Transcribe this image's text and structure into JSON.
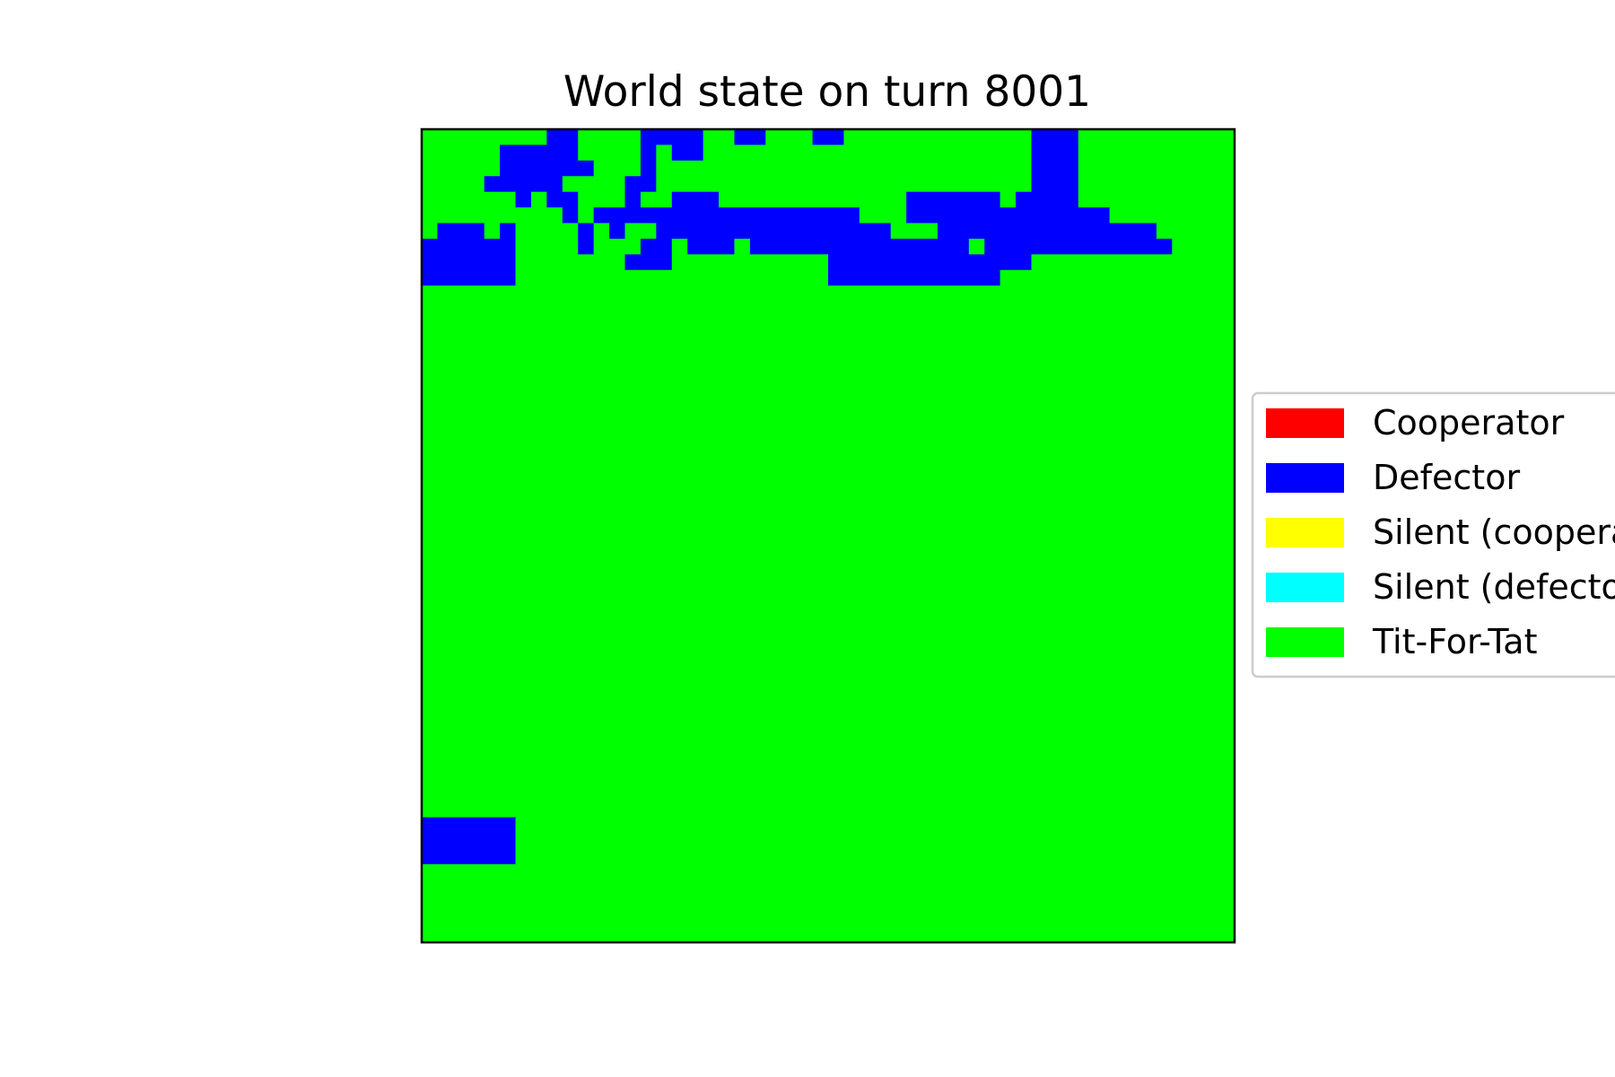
{
  "chart_data": {
    "type": "heatmap",
    "title": "World state on turn 8001",
    "grid": false,
    "legend": {
      "placement": "right",
      "entries": [
        {
          "label": "Cooperator",
          "color": "#ff0000"
        },
        {
          "label": "Defector",
          "color": "#0000ff"
        },
        {
          "label": "Silent (cooperator)",
          "color": "#ffff00"
        },
        {
          "label": "Silent (defector)",
          "color": "#00ffff"
        },
        {
          "label": "Tit-For-Tat",
          "color": "#00ff00"
        }
      ]
    },
    "palette": {
      "D": "#0000ff",
      "T": "#00ff00"
    },
    "rows": [
      "TTTTTTTTDDTTTTDDDDTTDDTTTDDTTTTTTTTTTTTDDDTTTTTTTTTT",
      "TTTTTDDDDDTTTTDTDDTTTTTTTTTTTTTTTTTTTTTDDDTTTTTTTTTT",
      "TTTTTDDDDDDTTTDTTTTTTTTTTTTTTTTTTTTTTTTDDDTTTTTTTTTT",
      "TTTTDDDDDTTTTDDTTTTTTTTTTTTTTTTTTTTTTTTDDDTTTTTTTTTT",
      "TTTTTTDTDDTTTDTTDDDTTTTTTTTTTTTDDDDDDTDDDDTTTTTTTTTT",
      "TTTTTTTTTDTDDDDDDDDDDDDDDDDDTTTDDDDDDDDDDDDDTTTTTTTT",
      "TDDDTDTTTTDTDTTDDDDDDDDDDDDDDDTTTDDDDDDDDDDDDDDTTTTT",
      "DDDDDDTTTTDTTTDDTDDDTDDDDDDDDDDDDDDTDDDDDDDDDDDDTTTT",
      "DDDDDDTTTTTTTDDDTTTTTTTTTTDDDDDDDDDDDDDTTTTTTTTTTTTT",
      "DDDDDDTTTTTTTTTTTTTTTTTTTTDDDDDDDDDDDTTTTTTTTTTTTTTT",
      "TTTTTTTTTTTTTTTTTTTTTTTTTTTTTTTTTTTTTTTTTTTTTTTTTTTT",
      "TTTTTTTTTTTTTTTTTTTTTTTTTTTTTTTTTTTTTTTTTTTTTTTTTTTT",
      "TTTTTTTTTTTTTTTTTTTTTTTTTTTTTTTTTTTTTTTTTTTTTTTTTTTT",
      "TTTTTTTTTTTTTTTTTTTTTTTTTTTTTTTTTTTTTTTTTTTTTTTTTTTT",
      "TTTTTTTTTTTTTTTTTTTTTTTTTTTTTTTTTTTTTTTTTTTTTTTTTTTT",
      "TTTTTTTTTTTTTTTTTTTTTTTTTTTTTTTTTTTTTTTTTTTTTTTTTTTT",
      "TTTTTTTTTTTTTTTTTTTTTTTTTTTTTTTTTTTTTTTTTTTTTTTTTTTT",
      "TTTTTTTTTTTTTTTTTTTTTTTTTTTTTTTTTTTTTTTTTTTTTTTTTTTT",
      "TTTTTTTTTTTTTTTTTTTTTTTTTTTTTTTTTTTTTTTTTTTTTTTTTTTT",
      "TTTTTTTTTTTTTTTTTTTTTTTTTTTTTTTTTTTTTTTTTTTTTTTTTTTT",
      "TTTTTTTTTTTTTTTTTTTTTTTTTTTTTTTTTTTTTTTTTTTTTTTTTTTT",
      "TTTTTTTTTTTTTTTTTTTTTTTTTTTTTTTTTTTTTTTTTTTTTTTTTTTT",
      "TTTTTTTTTTTTTTTTTTTTTTTTTTTTTTTTTTTTTTTTTTTTTTTTTTTT",
      "TTTTTTTTTTTTTTTTTTTTTTTTTTTTTTTTTTTTTTTTTTTTTTTTTTTT",
      "TTTTTTTTTTTTTTTTTTTTTTTTTTTTTTTTTTTTTTTTTTTTTTTTTTTT",
      "TTTTTTTTTTTTTTTTTTTTTTTTTTTTTTTTTTTTTTTTTTTTTTTTTTTT",
      "TTTTTTTTTTTTTTTTTTTTTTTTTTTTTTTTTTTTTTTTTTTTTTTTTTTT",
      "TTTTTTTTTTTTTTTTTTTTTTTTTTTTTTTTTTTTTTTTTTTTTTTTTTTT",
      "TTTTTTTTTTTTTTTTTTTTTTTTTTTTTTTTTTTTTTTTTTTTTTTTTTTT",
      "TTTTTTTTTTTTTTTTTTTTTTTTTTTTTTTTTTTTTTTTTTTTTTTTTTTT",
      "TTTTTTTTTTTTTTTTTTTTTTTTTTTTTTTTTTTTTTTTTTTTTTTTTTTT",
      "TTTTTTTTTTTTTTTTTTTTTTTTTTTTTTTTTTTTTTTTTTTTTTTTTTTT",
      "TTTTTTTTTTTTTTTTTTTTTTTTTTTTTTTTTTTTTTTTTTTTTTTTTTTT",
      "TTTTTTTTTTTTTTTTTTTTTTTTTTTTTTTTTTTTTTTTTTTTTTTTTTTT",
      "TTTTTTTTTTTTTTTTTTTTTTTTTTTTTTTTTTTTTTTTTTTTTTTTTTTT",
      "TTTTTTTTTTTTTTTTTTTTTTTTTTTTTTTTTTTTTTTTTTTTTTTTTTTT",
      "TTTTTTTTTTTTTTTTTTTTTTTTTTTTTTTTTTTTTTTTTTTTTTTTTTTT",
      "TTTTTTTTTTTTTTTTTTTTTTTTTTTTTTTTTTTTTTTTTTTTTTTTTTTT",
      "TTTTTTTTTTTTTTTTTTTTTTTTTTTTTTTTTTTTTTTTTTTTTTTTTTTT",
      "TTTTTTTTTTTTTTTTTTTTTTTTTTTTTTTTTTTTTTTTTTTTTTTTTTTT",
      "TTTTTTTTTTTTTTTTTTTTTTTTTTTTTTTTTTTTTTTTTTTTTTTTTTTT",
      "TTTTTTTTTTTTTTTTTTTTTTTTTTTTTTTTTTTTTTTTTTTTTTTTTTTT",
      "TTTTTTTTTTTTTTTTTTTTTTTTTTTTTTTTTTTTTTTTTTTTTTTTTTTT",
      "TTTTTTTTTTTTTTTTTTTTTTTTTTTTTTTTTTTTTTTTTTTTTTTTTTTT",
      "DDDDDDTTTTTTTTTTTTTTTTTTTTTTTTTTTTTTTTTTTTTTTTTTTTTT",
      "DDDDDDTTTTTTTTTTTTTTTTTTTTTTTTTTTTTTTTTTTTTTTTTTTTTT",
      "DDDDDDTTTTTTTTTTTTTTTTTTTTTTTTTTTTTTTTTTTTTTTTTTTTTT",
      "TTTTTTTTTTTTTTTTTTTTTTTTTTTTTTTTTTTTTTTTTTTTTTTTTTTT",
      "TTTTTTTTTTTTTTTTTTTTTTTTTTTTTTTTTTTTTTTTTTTTTTTTTTTT",
      "TTTTTTTTTTTTTTTTTTTTTTTTTTTTTTTTTTTTTTTTTTTTTTTTTTTT",
      "TTTTTTTTTTTTTTTTTTTTTTTTTTTTTTTTTTTTTTTTTTTTTTTTTTTT",
      "TTTTTTTTTTTTTTTTTTTTTTTTTTTTTTTTTTTTTTTTTTTTTTTTTTTT"
    ]
  }
}
